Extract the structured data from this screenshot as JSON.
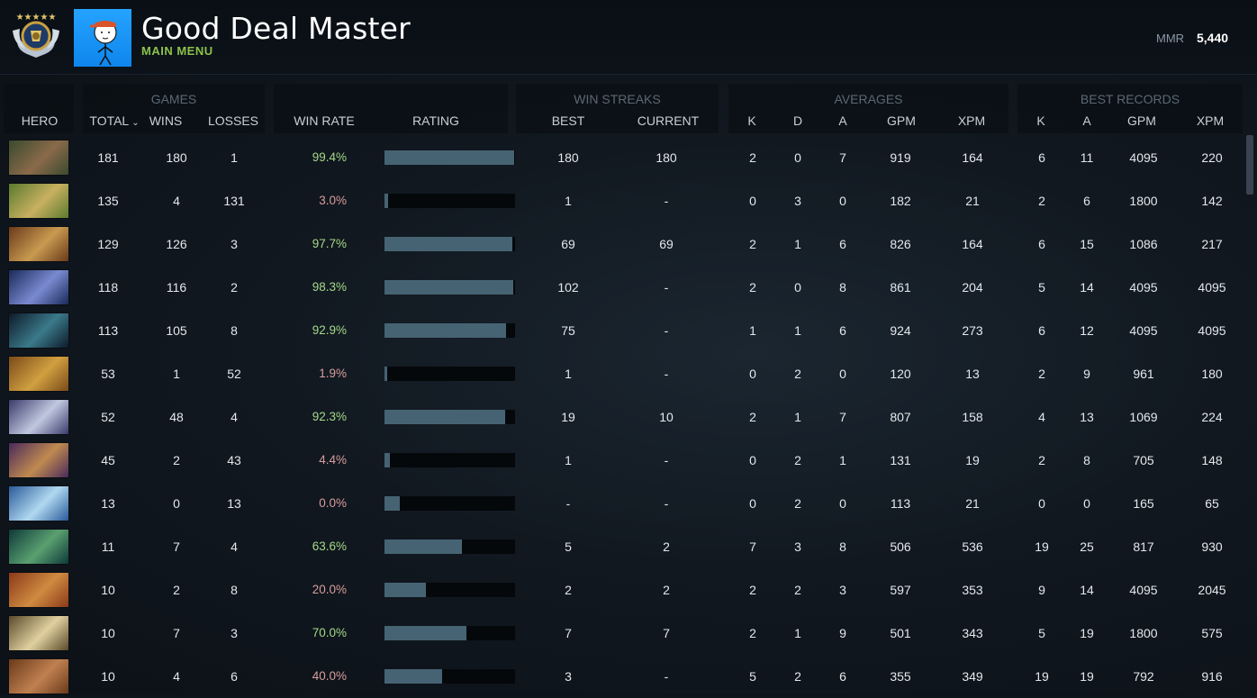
{
  "profile": {
    "name": "Good Deal Master",
    "menu_label": "MAIN MENU",
    "mmr_label": "MMR",
    "mmr_value": "5,440"
  },
  "groups": {
    "games": "GAMES",
    "win_streaks": "WIN STREAKS",
    "averages": "AVERAGES",
    "best_records": "BEST RECORDS"
  },
  "columns": {
    "hero": "HERO",
    "total": "TOTAL",
    "wins": "WINS",
    "losses": "LOSSES",
    "win_rate": "WIN RATE",
    "rating": "RATING",
    "best": "BEST",
    "current": "CURRENT",
    "k": "K",
    "d": "D",
    "a": "A",
    "gpm": "GPM",
    "xpm": "XPM",
    "best_k": "K",
    "best_a": "A",
    "best_gpm": "GPM",
    "best_xpm": "XPM"
  },
  "colors": {
    "good_winrate": "#a5d987",
    "bad_winrate": "#d99d9d",
    "rating_fill": "#466373"
  },
  "rows": [
    {
      "hero_icon": "hero-portrait-icon",
      "colors": [
        "#3a4a2e",
        "#8a6a4a"
      ],
      "total": "181",
      "wins": "180",
      "losses": "1",
      "win_rate": "99.4%",
      "rating": 0.994,
      "best": "180",
      "current": "180",
      "k": "2",
      "d": "0",
      "a": "7",
      "gpm": "919",
      "xpm": "164",
      "best_k": "6",
      "best_a": "11",
      "best_gpm": "4095",
      "best_xpm": "220"
    },
    {
      "hero_icon": "hero-portrait-icon",
      "colors": [
        "#5a7a2e",
        "#c8b060"
      ],
      "total": "135",
      "wins": "4",
      "losses": "131",
      "win_rate": "3.0%",
      "rating": 0.03,
      "best": "1",
      "current": "-",
      "k": "0",
      "d": "3",
      "a": "0",
      "gpm": "182",
      "xpm": "21",
      "best_k": "2",
      "best_a": "6",
      "best_gpm": "1800",
      "best_xpm": "142"
    },
    {
      "hero_icon": "hero-portrait-icon",
      "colors": [
        "#6a3a1a",
        "#c89a50"
      ],
      "total": "129",
      "wins": "126",
      "losses": "3",
      "win_rate": "97.7%",
      "rating": 0.977,
      "best": "69",
      "current": "69",
      "k": "2",
      "d": "1",
      "a": "6",
      "gpm": "826",
      "xpm": "164",
      "best_k": "6",
      "best_a": "15",
      "best_gpm": "1086",
      "best_xpm": "217"
    },
    {
      "hero_icon": "hero-portrait-icon",
      "colors": [
        "#1a2a5a",
        "#7a8ad0"
      ],
      "total": "118",
      "wins": "116",
      "losses": "2",
      "win_rate": "98.3%",
      "rating": 0.983,
      "best": "102",
      "current": "-",
      "k": "2",
      "d": "0",
      "a": "8",
      "gpm": "861",
      "xpm": "204",
      "best_k": "5",
      "best_a": "14",
      "best_gpm": "4095",
      "best_xpm": "4095"
    },
    {
      "hero_icon": "hero-portrait-icon",
      "colors": [
        "#0e1a2a",
        "#3a7a8a"
      ],
      "total": "113",
      "wins": "105",
      "losses": "8",
      "win_rate": "92.9%",
      "rating": 0.929,
      "best": "75",
      "current": "-",
      "k": "1",
      "d": "1",
      "a": "6",
      "gpm": "924",
      "xpm": "273",
      "best_k": "6",
      "best_a": "12",
      "best_gpm": "4095",
      "best_xpm": "4095"
    },
    {
      "hero_icon": "hero-portrait-icon",
      "colors": [
        "#7a4a1a",
        "#d0a040"
      ],
      "total": "53",
      "wins": "1",
      "losses": "52",
      "win_rate": "1.9%",
      "rating": 0.019,
      "best": "1",
      "current": "-",
      "k": "0",
      "d": "2",
      "a": "0",
      "gpm": "120",
      "xpm": "13",
      "best_k": "2",
      "best_a": "9",
      "best_gpm": "961",
      "best_xpm": "180"
    },
    {
      "hero_icon": "hero-portrait-icon",
      "colors": [
        "#3a3a6a",
        "#c0c8e0"
      ],
      "total": "52",
      "wins": "48",
      "losses": "4",
      "win_rate": "92.3%",
      "rating": 0.923,
      "best": "19",
      "current": "10",
      "k": "2",
      "d": "1",
      "a": "7",
      "gpm": "807",
      "xpm": "158",
      "best_k": "4",
      "best_a": "13",
      "best_gpm": "1069",
      "best_xpm": "224"
    },
    {
      "hero_icon": "hero-portrait-icon",
      "colors": [
        "#4a2a5a",
        "#c08a50"
      ],
      "total": "45",
      "wins": "2",
      "losses": "43",
      "win_rate": "4.4%",
      "rating": 0.044,
      "best": "1",
      "current": "-",
      "k": "0",
      "d": "2",
      "a": "1",
      "gpm": "131",
      "xpm": "19",
      "best_k": "2",
      "best_a": "8",
      "best_gpm": "705",
      "best_xpm": "148"
    },
    {
      "hero_icon": "hero-portrait-icon",
      "colors": [
        "#2a5a9a",
        "#b0d8f0"
      ],
      "total": "13",
      "wins": "0",
      "losses": "13",
      "win_rate": "0.0%",
      "rating": 0.12,
      "best": "-",
      "current": "-",
      "k": "0",
      "d": "2",
      "a": "0",
      "gpm": "113",
      "xpm": "21",
      "best_k": "0",
      "best_a": "0",
      "best_gpm": "165",
      "best_xpm": "65"
    },
    {
      "hero_icon": "hero-portrait-icon",
      "colors": [
        "#0e3a3a",
        "#5aa070"
      ],
      "total": "11",
      "wins": "7",
      "losses": "4",
      "win_rate": "63.6%",
      "rating": 0.594,
      "best": "5",
      "current": "2",
      "k": "7",
      "d": "3",
      "a": "8",
      "gpm": "506",
      "xpm": "536",
      "best_k": "19",
      "best_a": "25",
      "best_gpm": "817",
      "best_xpm": "930"
    },
    {
      "hero_icon": "hero-portrait-icon",
      "colors": [
        "#8a3a1a",
        "#d08a40"
      ],
      "total": "10",
      "wins": "2",
      "losses": "8",
      "win_rate": "20.0%",
      "rating": 0.317,
      "best": "2",
      "current": "2",
      "k": "2",
      "d": "2",
      "a": "3",
      "gpm": "597",
      "xpm": "353",
      "best_k": "9",
      "best_a": "14",
      "best_gpm": "4095",
      "best_xpm": "2045"
    },
    {
      "hero_icon": "hero-portrait-icon",
      "colors": [
        "#5a4a2a",
        "#e0d0a0"
      ],
      "total": "10",
      "wins": "7",
      "losses": "3",
      "win_rate": "70.0%",
      "rating": 0.628,
      "best": "7",
      "current": "7",
      "k": "2",
      "d": "1",
      "a": "9",
      "gpm": "501",
      "xpm": "343",
      "best_k": "5",
      "best_a": "19",
      "best_gpm": "1800",
      "best_xpm": "575"
    },
    {
      "hero_icon": "hero-portrait-icon",
      "colors": [
        "#6a3a1a",
        "#c08050"
      ],
      "total": "10",
      "wins": "4",
      "losses": "6",
      "win_rate": "40.0%",
      "rating": 0.441,
      "best": "3",
      "current": "-",
      "k": "5",
      "d": "2",
      "a": "6",
      "gpm": "355",
      "xpm": "349",
      "best_k": "19",
      "best_a": "19",
      "best_gpm": "792",
      "best_xpm": "916"
    }
  ]
}
